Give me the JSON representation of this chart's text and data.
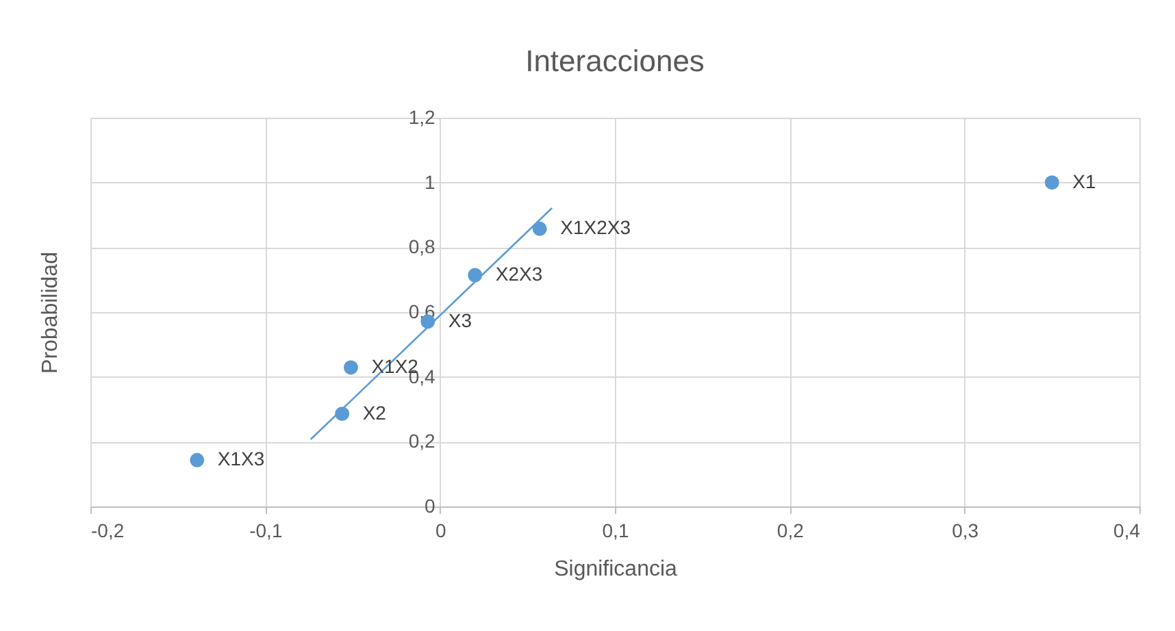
{
  "chart_data": {
    "type": "scatter",
    "title": "Interacciones",
    "xlabel": "Significancia",
    "ylabel": "Probabilidad",
    "xlim": [
      -0.2,
      0.4
    ],
    "xticks": [
      {
        "value": -0.2,
        "label": "-0,2"
      },
      {
        "value": -0.1,
        "label": "-0,1"
      },
      {
        "value": 0,
        "label": "0"
      },
      {
        "value": 0.1,
        "label": "0,1"
      },
      {
        "value": 0.2,
        "label": "0,2"
      },
      {
        "value": 0.3,
        "label": "0,3"
      },
      {
        "value": 0.4,
        "label": "0,4"
      }
    ],
    "ylim": [
      0,
      1.2
    ],
    "yticks": [
      {
        "value": 0,
        "label": "0"
      },
      {
        "value": 0.2,
        "label": "0,2"
      },
      {
        "value": 0.4,
        "label": "0,4"
      },
      {
        "value": 0.6,
        "label": "0,6"
      },
      {
        "value": 0.8,
        "label": "0,8"
      },
      {
        "value": 1,
        "label": "1"
      },
      {
        "value": 1.2,
        "label": "1,2"
      }
    ],
    "grid": true,
    "series": [
      {
        "type": "scatter",
        "marker": "circle",
        "color": "#5b9bd5",
        "x": [
          -0.139,
          -0.056,
          -0.051,
          -0.007,
          0.02,
          0.057,
          0.35
        ],
        "values": [
          0.143,
          0.286,
          0.429,
          0.571,
          0.714,
          0.857,
          1.0
        ]
      },
      {
        "type": "line",
        "marker": "none",
        "color": "#5b9bd5",
        "x": [
          -0.074,
          0.064
        ],
        "values": [
          0.207,
          0.921
        ]
      }
    ],
    "annotations": [
      {
        "text": "X1X3",
        "x": -0.139,
        "y": 0.143
      },
      {
        "text": "X2",
        "x": -0.056,
        "y": 0.286
      },
      {
        "text": "X1X2",
        "x": -0.051,
        "y": 0.429
      },
      {
        "text": "X3",
        "x": -0.007,
        "y": 0.571
      },
      {
        "text": "X2X3",
        "x": 0.02,
        "y": 0.714
      },
      {
        "text": "X1X2X3",
        "x": 0.057,
        "y": 0.857
      },
      {
        "text": "X1",
        "x": 0.35,
        "y": 1.0
      }
    ]
  }
}
